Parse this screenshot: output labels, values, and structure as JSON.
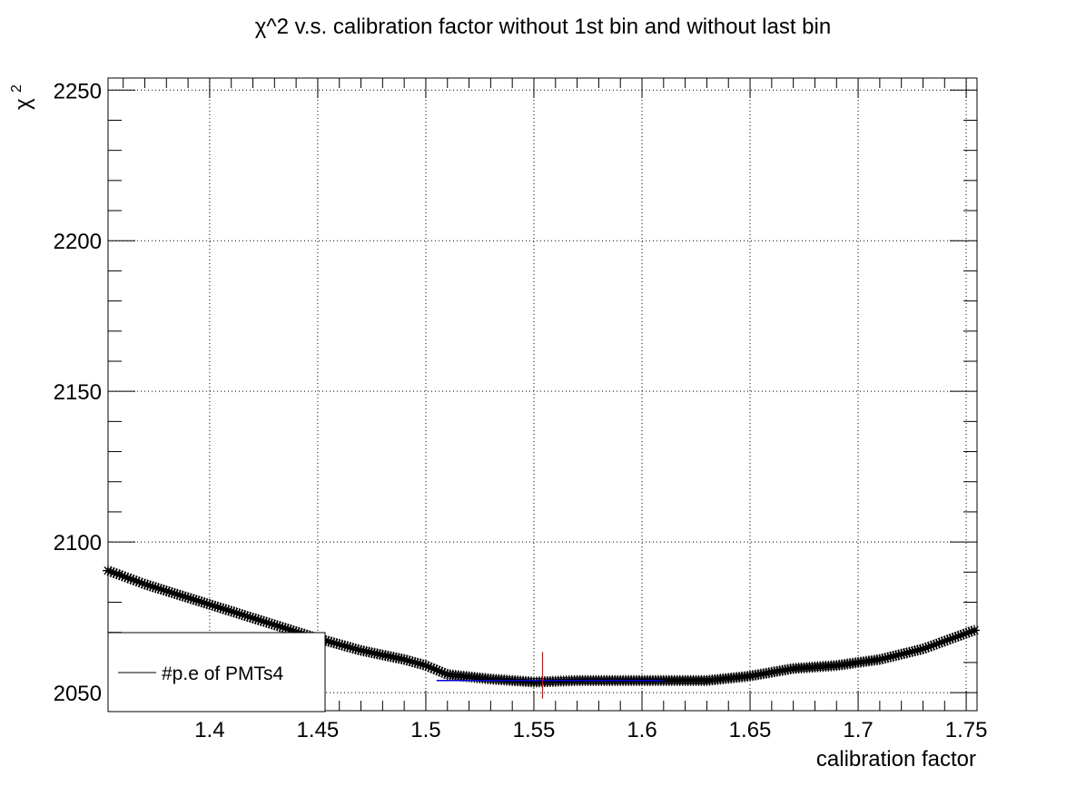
{
  "chart_data": {
    "type": "line",
    "title": "χ^2 v.s. calibration factor without 1st bin and without last bin",
    "xlabel": "calibration factor",
    "ylabel_symbol": "χ",
    "ylabel_superscript": "2",
    "xlim": [
      1.353,
      1.755
    ],
    "ylim": [
      2044,
      2254
    ],
    "x_ticks": [
      1.4,
      1.45,
      1.5,
      1.55,
      1.6,
      1.65,
      1.7,
      1.75
    ],
    "x_tick_labels": [
      "1.4",
      "1.45",
      "1.5",
      "1.55",
      "1.6",
      "1.65",
      "1.7",
      "1.75"
    ],
    "y_ticks": [
      2050,
      2100,
      2150,
      2200,
      2250
    ],
    "y_tick_labels": [
      "2050",
      "2100",
      "2150",
      "2200",
      "2250"
    ],
    "grid": true,
    "legend_position": "bottom-left",
    "series": [
      {
        "name": "#p.e of PMTs4",
        "color": "#000000",
        "marker": "star",
        "x": [
          1.353,
          1.37,
          1.39,
          1.41,
          1.43,
          1.45,
          1.47,
          1.49,
          1.5,
          1.51,
          1.53,
          1.55,
          1.57,
          1.6,
          1.63,
          1.65,
          1.67,
          1.69,
          1.71,
          1.73,
          1.755
        ],
        "y": [
          2090.5,
          2086,
          2081.5,
          2077,
          2072.5,
          2068,
          2064,
          2061,
          2059,
          2056,
          2054.5,
          2053.5,
          2054,
          2054,
          2054,
          2055.5,
          2058,
          2059,
          2061,
          2064.5,
          2071
        ]
      }
    ],
    "fit_line": {
      "color": "#0000cc",
      "x": [
        1.505,
        1.61
      ],
      "y": [
        2054,
        2054
      ]
    },
    "minimum_marker": {
      "color": "#ff0000",
      "x": 1.554,
      "y_range": [
        2048,
        2063.5
      ]
    }
  }
}
